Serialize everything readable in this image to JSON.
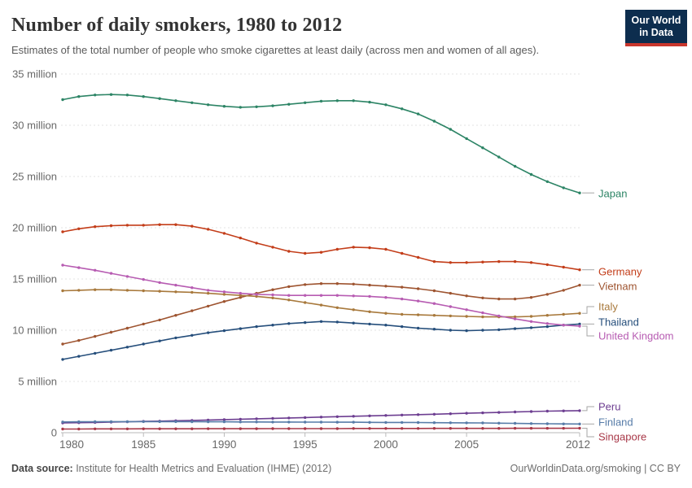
{
  "header": {
    "title": "Number of daily smokers, 1980 to 2012",
    "subtitle": "Estimates of the total number of people who smoke cigarettes at least daily (across men and women of all ages).",
    "logo": {
      "line1": "Our World",
      "line2": "in Data"
    }
  },
  "footer": {
    "source_label": "Data source:",
    "source_text": " Institute for Health Metrics and Evaluation (IHME) (2012)",
    "link_text": "OurWorldinData.org/smoking | CC BY"
  },
  "chart_data": {
    "type": "line",
    "title": "Number of daily smokers, 1980 to 2012",
    "subtitle": "Estimates of the total number of people who smoke cigarettes at least daily (across men and women of all ages).",
    "unit": "million",
    "grid": true,
    "legend_position": "right-inline-labels",
    "ylim": [
      0,
      35
    ],
    "y_ticks": [
      0,
      5,
      10,
      15,
      20,
      25,
      30,
      35
    ],
    "y_tick_labels": [
      "0",
      "5 million",
      "10 million",
      "15 million",
      "20 million",
      "25 million",
      "30 million",
      "35 million"
    ],
    "x_ticks": [
      1980,
      1985,
      1990,
      1995,
      2000,
      2005,
      2012
    ],
    "x": [
      1980,
      1981,
      1982,
      1983,
      1984,
      1985,
      1986,
      1987,
      1988,
      1989,
      1990,
      1991,
      1992,
      1993,
      1994,
      1995,
      1996,
      1997,
      1998,
      1999,
      2000,
      2001,
      2002,
      2003,
      2004,
      2005,
      2006,
      2007,
      2008,
      2009,
      2010,
      2011,
      2012
    ],
    "series": [
      {
        "name": "Japan",
        "color": "#2C8465",
        "values": [
          32.5,
          32.8,
          32.95,
          33.0,
          32.95,
          32.8,
          32.6,
          32.4,
          32.2,
          32.0,
          31.85,
          31.75,
          31.8,
          31.9,
          32.05,
          32.2,
          32.35,
          32.4,
          32.4,
          32.25,
          32.0,
          31.6,
          31.1,
          30.4,
          29.6,
          28.7,
          27.8,
          26.9,
          26.0,
          25.2,
          24.5,
          23.9,
          23.4
        ]
      },
      {
        "name": "Germany",
        "color": "#C33D19",
        "values": [
          19.6,
          19.9,
          20.1,
          20.2,
          20.25,
          20.25,
          20.3,
          20.3,
          20.15,
          19.85,
          19.45,
          19.0,
          18.5,
          18.1,
          17.7,
          17.5,
          17.6,
          17.9,
          18.1,
          18.05,
          17.9,
          17.5,
          17.1,
          16.7,
          16.6,
          16.6,
          16.65,
          16.7,
          16.7,
          16.6,
          16.4,
          16.15,
          15.9
        ]
      },
      {
        "name": "Vietnam",
        "color": "#9E5430",
        "values": [
          8.65,
          9.0,
          9.4,
          9.8,
          10.2,
          10.6,
          11.0,
          11.45,
          11.9,
          12.35,
          12.8,
          13.2,
          13.6,
          13.95,
          14.25,
          14.45,
          14.55,
          14.55,
          14.5,
          14.4,
          14.3,
          14.2,
          14.05,
          13.85,
          13.6,
          13.35,
          13.15,
          13.05,
          13.05,
          13.2,
          13.5,
          13.9,
          14.4
        ]
      },
      {
        "name": "Italy",
        "color": "#A8793C",
        "values": [
          13.85,
          13.9,
          13.95,
          13.95,
          13.9,
          13.85,
          13.8,
          13.75,
          13.7,
          13.6,
          13.5,
          13.4,
          13.3,
          13.15,
          12.95,
          12.7,
          12.45,
          12.2,
          12.0,
          11.8,
          11.65,
          11.55,
          11.5,
          11.45,
          11.4,
          11.35,
          11.3,
          11.3,
          11.3,
          11.35,
          11.45,
          11.55,
          11.65
        ]
      },
      {
        "name": "Thailand",
        "color": "#254E7B",
        "values": [
          7.15,
          7.45,
          7.75,
          8.05,
          8.35,
          8.65,
          8.95,
          9.25,
          9.5,
          9.75,
          9.95,
          10.15,
          10.35,
          10.5,
          10.65,
          10.75,
          10.85,
          10.8,
          10.7,
          10.6,
          10.5,
          10.35,
          10.2,
          10.1,
          10.0,
          9.95,
          10.0,
          10.05,
          10.15,
          10.25,
          10.35,
          10.5,
          10.6
        ]
      },
      {
        "name": "United Kingdom",
        "color": "#B75CB2",
        "values": [
          16.35,
          16.1,
          15.85,
          15.55,
          15.25,
          14.95,
          14.65,
          14.4,
          14.15,
          13.9,
          13.75,
          13.6,
          13.5,
          13.45,
          13.4,
          13.4,
          13.4,
          13.4,
          13.35,
          13.3,
          13.2,
          13.05,
          12.85,
          12.6,
          12.3,
          12.0,
          11.7,
          11.4,
          11.1,
          10.85,
          10.65,
          10.5,
          10.4
        ]
      },
      {
        "name": "Peru",
        "color": "#6D3E91",
        "values": [
          0.95,
          0.98,
          1.0,
          1.03,
          1.06,
          1.1,
          1.13,
          1.17,
          1.2,
          1.24,
          1.28,
          1.32,
          1.36,
          1.4,
          1.44,
          1.48,
          1.52,
          1.56,
          1.6,
          1.64,
          1.68,
          1.72,
          1.76,
          1.8,
          1.85,
          1.9,
          1.94,
          1.98,
          2.02,
          2.06,
          2.1,
          2.13,
          2.15
        ]
      },
      {
        "name": "Finland",
        "color": "#577CA8",
        "values": [
          1.05,
          1.06,
          1.07,
          1.08,
          1.08,
          1.08,
          1.08,
          1.08,
          1.07,
          1.06,
          1.06,
          1.05,
          1.05,
          1.04,
          1.04,
          1.03,
          1.03,
          1.02,
          1.02,
          1.01,
          1.0,
          1.0,
          0.99,
          0.98,
          0.97,
          0.96,
          0.95,
          0.93,
          0.91,
          0.89,
          0.87,
          0.86,
          0.85
        ]
      },
      {
        "name": "Singapore",
        "color": "#A83848",
        "values": [
          0.36,
          0.36,
          0.37,
          0.37,
          0.37,
          0.38,
          0.38,
          0.38,
          0.38,
          0.39,
          0.39,
          0.39,
          0.39,
          0.4,
          0.4,
          0.4,
          0.4,
          0.4,
          0.41,
          0.41,
          0.41,
          0.41,
          0.41,
          0.42,
          0.42,
          0.42,
          0.42,
          0.42,
          0.43,
          0.43,
          0.43,
          0.43,
          0.44
        ]
      }
    ]
  }
}
